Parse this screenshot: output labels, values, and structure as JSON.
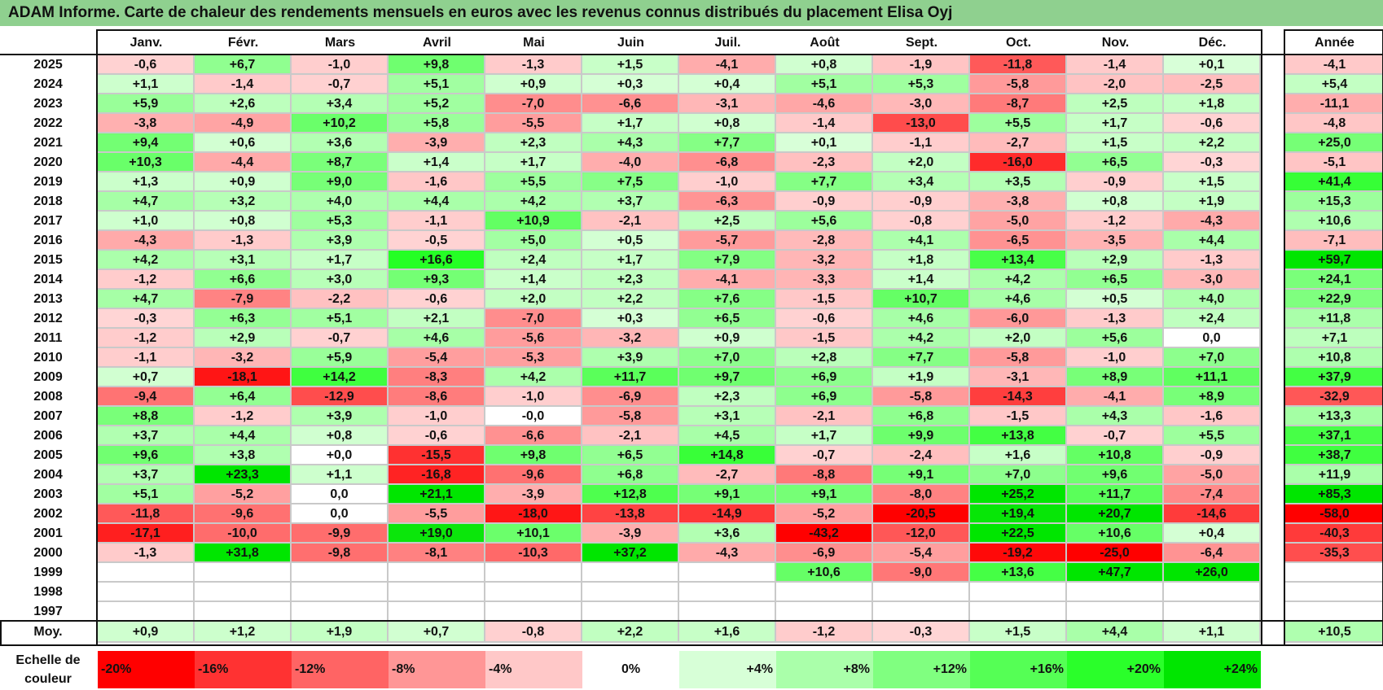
{
  "title": "ADAM Informe. Carte de chaleur des rendements mensuels en euros avec les revenus connus distribués du placement Elisa Oyj",
  "chart_data": {
    "type": "heatmap",
    "title": "ADAM Informe. Carte de chaleur des rendements mensuels en euros avec les revenus connus distribués du placement Elisa Oyj",
    "columns": [
      "Janv.",
      "Févr.",
      "Mars",
      "Avril",
      "Mai",
      "Juin",
      "Juil.",
      "Août",
      "Sept.",
      "Oct.",
      "Nov.",
      "Déc."
    ],
    "annual_header": "Année",
    "rows": [
      {
        "year": "2025",
        "values": [
          "-0,6",
          "+6,7",
          "-1,0",
          "+9,8",
          "-1,3",
          "+1,5",
          "-4,1",
          "+0,8",
          "-1,9",
          "-11,8",
          "-1,4",
          "+0,1"
        ],
        "annual": "-4,1"
      },
      {
        "year": "2024",
        "values": [
          "+1,1",
          "-1,4",
          "-0,7",
          "+5,1",
          "+0,9",
          "+0,3",
          "+0,4",
          "+5,1",
          "+5,3",
          "-5,8",
          "-2,0",
          "-2,5"
        ],
        "annual": "+5,4"
      },
      {
        "year": "2023",
        "values": [
          "+5,9",
          "+2,6",
          "+3,4",
          "+5,2",
          "-7,0",
          "-6,6",
          "-3,1",
          "-4,6",
          "-3,0",
          "-8,7",
          "+2,5",
          "+1,8"
        ],
        "annual": "-11,1"
      },
      {
        "year": "2022",
        "values": [
          "-3,8",
          "-4,9",
          "+10,2",
          "+5,8",
          "-5,5",
          "+1,7",
          "+0,8",
          "-1,4",
          "-13,0",
          "+5,5",
          "+1,7",
          "-0,6"
        ],
        "annual": "-4,8"
      },
      {
        "year": "2021",
        "values": [
          "+9,4",
          "+0,6",
          "+3,6",
          "-3,9",
          "+2,3",
          "+4,3",
          "+7,7",
          "+0,1",
          "-1,1",
          "-2,7",
          "+1,5",
          "+2,2"
        ],
        "annual": "+25,0"
      },
      {
        "year": "2020",
        "values": [
          "+10,3",
          "-4,4",
          "+8,7",
          "+1,4",
          "+1,7",
          "-4,0",
          "-6,8",
          "-2,3",
          "+2,0",
          "-16,0",
          "+6,5",
          "-0,3"
        ],
        "annual": "-5,1"
      },
      {
        "year": "2019",
        "values": [
          "+1,3",
          "+0,9",
          "+9,0",
          "-1,6",
          "+5,5",
          "+7,5",
          "-1,0",
          "+7,7",
          "+3,4",
          "+3,5",
          "-0,9",
          "+1,5"
        ],
        "annual": "+41,4"
      },
      {
        "year": "2018",
        "values": [
          "+4,7",
          "+3,2",
          "+4,0",
          "+4,4",
          "+4,2",
          "+3,7",
          "-6,3",
          "-0,9",
          "-0,9",
          "-3,8",
          "+0,8",
          "+1,9"
        ],
        "annual": "+15,3"
      },
      {
        "year": "2017",
        "values": [
          "+1,0",
          "+0,8",
          "+5,3",
          "-1,1",
          "+10,9",
          "-2,1",
          "+2,5",
          "+5,6",
          "-0,8",
          "-5,0",
          "-1,2",
          "-4,3"
        ],
        "annual": "+10,6"
      },
      {
        "year": "2016",
        "values": [
          "-4,3",
          "-1,3",
          "+3,9",
          "-0,5",
          "+5,0",
          "+0,5",
          "-5,7",
          "-2,8",
          "+4,1",
          "-6,5",
          "-3,5",
          "+4,4"
        ],
        "annual": "-7,1"
      },
      {
        "year": "2015",
        "values": [
          "+4,2",
          "+3,1",
          "+1,7",
          "+16,6",
          "+2,4",
          "+1,7",
          "+7,9",
          "-3,2",
          "+1,8",
          "+13,4",
          "+2,9",
          "-1,3"
        ],
        "annual": "+59,7"
      },
      {
        "year": "2014",
        "values": [
          "-1,2",
          "+6,6",
          "+3,0",
          "+9,3",
          "+1,4",
          "+2,3",
          "-4,1",
          "-3,3",
          "+1,4",
          "+4,2",
          "+6,5",
          "-3,0"
        ],
        "annual": "+24,1"
      },
      {
        "year": "2013",
        "values": [
          "+4,7",
          "-7,9",
          "-2,2",
          "-0,6",
          "+2,0",
          "+2,2",
          "+7,6",
          "-1,5",
          "+10,7",
          "+4,6",
          "+0,5",
          "+4,0"
        ],
        "annual": "+22,9"
      },
      {
        "year": "2012",
        "values": [
          "-0,3",
          "+6,3",
          "+5,1",
          "+2,1",
          "-7,0",
          "+0,3",
          "+6,5",
          "-0,6",
          "+4,6",
          "-6,0",
          "-1,3",
          "+2,4"
        ],
        "annual": "+11,8"
      },
      {
        "year": "2011",
        "values": [
          "-1,2",
          "+2,9",
          "-0,7",
          "+4,6",
          "-5,6",
          "-3,2",
          "+0,9",
          "-1,5",
          "+4,2",
          "+2,0",
          "+5,6",
          "0,0"
        ],
        "annual": "+7,1"
      },
      {
        "year": "2010",
        "values": [
          "-1,1",
          "-3,2",
          "+5,9",
          "-5,4",
          "-5,3",
          "+3,9",
          "+7,0",
          "+2,8",
          "+7,7",
          "-5,8",
          "-1,0",
          "+7,0"
        ],
        "annual": "+10,8"
      },
      {
        "year": "2009",
        "values": [
          "+0,7",
          "-18,1",
          "+14,2",
          "-8,3",
          "+4,2",
          "+11,7",
          "+9,7",
          "+6,9",
          "+1,9",
          "-3,1",
          "+8,9",
          "+11,1"
        ],
        "annual": "+37,9"
      },
      {
        "year": "2008",
        "values": [
          "-9,4",
          "+6,4",
          "-12,9",
          "-8,6",
          "-1,0",
          "-6,9",
          "+2,3",
          "+6,9",
          "-5,8",
          "-14,3",
          "-4,1",
          "+8,9"
        ],
        "annual": "-32,9"
      },
      {
        "year": "2007",
        "values": [
          "+8,8",
          "-1,2",
          "+3,9",
          "-1,0",
          "-0,0",
          "-5,8",
          "+3,1",
          "-2,1",
          "+6,8",
          "-1,5",
          "+4,3",
          "-1,6"
        ],
        "annual": "+13,3"
      },
      {
        "year": "2006",
        "values": [
          "+3,7",
          "+4,4",
          "+0,8",
          "-0,6",
          "-6,6",
          "-2,1",
          "+4,5",
          "+1,7",
          "+9,9",
          "+13,8",
          "-0,7",
          "+5,5"
        ],
        "annual": "+37,1"
      },
      {
        "year": "2005",
        "values": [
          "+9,6",
          "+3,8",
          "+0,0",
          "-15,5",
          "+9,8",
          "+6,5",
          "+14,8",
          "-0,7",
          "-2,4",
          "+1,6",
          "+10,8",
          "-0,9"
        ],
        "annual": "+38,7"
      },
      {
        "year": "2004",
        "values": [
          "+3,7",
          "+23,3",
          "+1,1",
          "-16,8",
          "-9,6",
          "+6,8",
          "-2,7",
          "-8,8",
          "+9,1",
          "+7,0",
          "+9,6",
          "-5,0"
        ],
        "annual": "+11,9"
      },
      {
        "year": "2003",
        "values": [
          "+5,1",
          "-5,2",
          "0,0",
          "+21,1",
          "-3,9",
          "+12,8",
          "+9,1",
          "+9,1",
          "-8,0",
          "+25,2",
          "+11,7",
          "-7,4"
        ],
        "annual": "+85,3"
      },
      {
        "year": "2002",
        "values": [
          "-11,8",
          "-9,6",
          "0,0",
          "-5,5",
          "-18,0",
          "-13,8",
          "-14,9",
          "-5,2",
          "-20,5",
          "+19,4",
          "+20,7",
          "-14,6"
        ],
        "annual": "-58,0"
      },
      {
        "year": "2001",
        "values": [
          "-17,1",
          "-10,0",
          "-9,9",
          "+19,0",
          "+10,1",
          "-3,9",
          "+3,6",
          "-43,2",
          "-12,0",
          "+22,5",
          "+10,6",
          "+0,4"
        ],
        "annual": "-40,3"
      },
      {
        "year": "2000",
        "values": [
          "-1,3",
          "+31,8",
          "-9,8",
          "-8,1",
          "-10,3",
          "+37,2",
          "-4,3",
          "-6,9",
          "-5,4",
          "-19,2",
          "-25,0",
          "-6,4"
        ],
        "annual": "-35,3"
      },
      {
        "year": "1999",
        "values": [
          "",
          "",
          "",
          "",
          "",
          "",
          "",
          "+10,6",
          "-9,0",
          "+13,6",
          "+47,7",
          "+26,0"
        ],
        "annual": ""
      },
      {
        "year": "1998",
        "values": [
          "",
          "",
          "",
          "",
          "",
          "",
          "",
          "",
          "",
          "",
          "",
          ""
        ],
        "annual": ""
      },
      {
        "year": "1997",
        "values": [
          "",
          "",
          "",
          "",
          "",
          "",
          "",
          "",
          "",
          "",
          "",
          ""
        ],
        "annual": ""
      }
    ],
    "average": {
      "label": "Moy.",
      "values": [
        "+0,9",
        "+1,2",
        "+1,9",
        "+0,7",
        "-0,8",
        "+2,2",
        "+1,6",
        "-1,2",
        "-0,3",
        "+1,5",
        "+4,4",
        "+1,1"
      ],
      "annual": "+10,5"
    },
    "color_scale": {
      "label": "Echelle de couleur",
      "steps": [
        "-20%",
        "-16%",
        "-12%",
        "-8%",
        "-4%",
        "0%",
        "+4%",
        "+8%",
        "+12%",
        "+16%",
        "+20%",
        "+24%"
      ],
      "colors": [
        "#ff0000",
        "#ff3232",
        "#ff6464",
        "#ff9696",
        "#ffc8c8",
        "#ffffff",
        "#d7ffd7",
        "#aaffaa",
        "#80ff80",
        "#55ff55",
        "#2aff2a",
        "#00e600"
      ]
    }
  }
}
